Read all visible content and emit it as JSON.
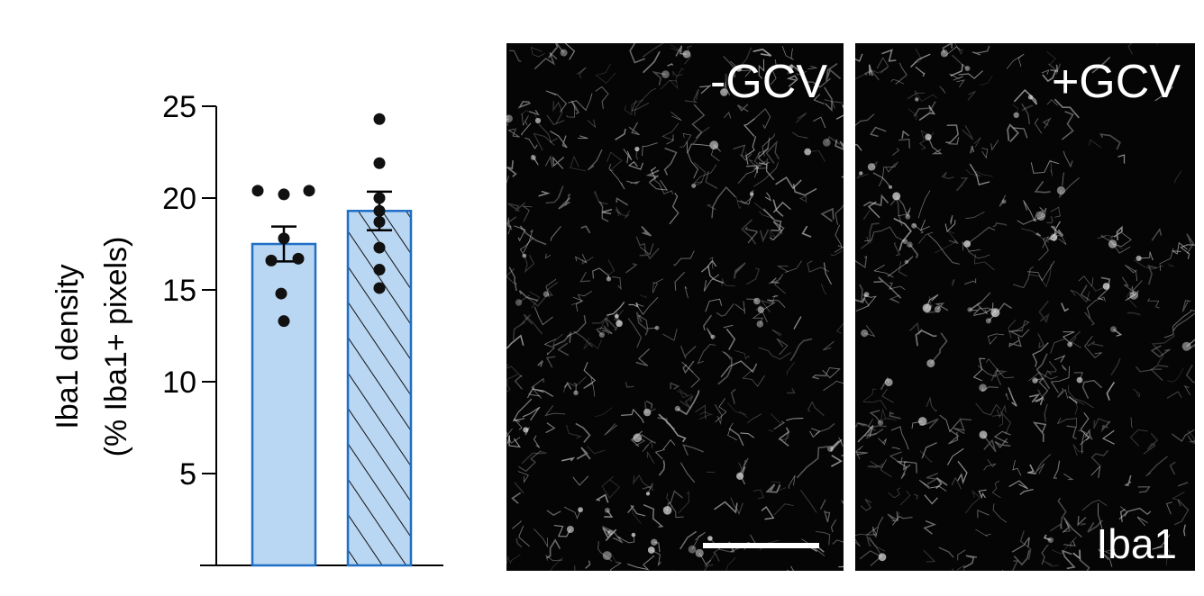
{
  "colors": {
    "bar_fill": "#b9d6f2",
    "bar_stroke": "#1f6fc5",
    "axis": "#000000",
    "points": "#111111",
    "micrograph_background": "#050505",
    "micrograph_signal": "#d8d8d8"
  },
  "chart_data": {
    "type": "bar",
    "title": "",
    "xlabel": "",
    "ylabel_line1": "Iba1 density",
    "ylabel_line2": "(% Iba1+ pixels)",
    "ylim": [
      0,
      25
    ],
    "yticks": [
      {
        "value": 5,
        "label": "5"
      },
      {
        "value": 10,
        "label": "10"
      },
      {
        "value": 15,
        "label": "15"
      },
      {
        "value": 20,
        "label": "20"
      },
      {
        "value": 25,
        "label": "25"
      }
    ],
    "categories": [
      "",
      ""
    ],
    "bars": [
      {
        "index": 0,
        "value": 17.5,
        "sem": 0.95,
        "pattern": "solid",
        "points": [
          20.4,
          20.2,
          20.4,
          17.8,
          16.6,
          16.7,
          14.8,
          13.3
        ]
      },
      {
        "index": 1,
        "value": 19.3,
        "sem": 1.05,
        "pattern": "hatched",
        "points": [
          24.3,
          21.9,
          20.0,
          19.3,
          18.7,
          17.3,
          16.1,
          15.1
        ]
      }
    ]
  },
  "micrographs": [
    {
      "label": "-GCV",
      "show_scale_bar": true,
      "seed": 17
    },
    {
      "label": "+GCV",
      "corner_label": "Iba1",
      "show_scale_bar": false,
      "seed": 53
    }
  ]
}
